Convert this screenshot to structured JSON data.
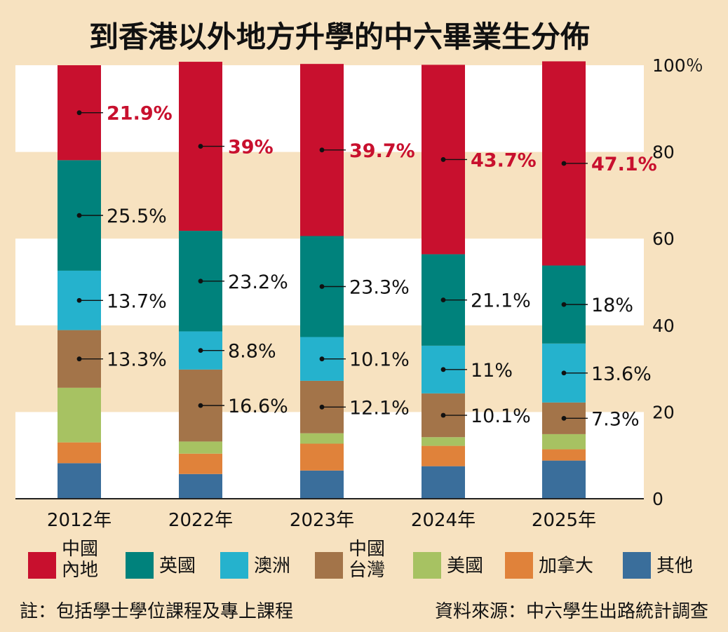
{
  "chart_data": {
    "type": "bar",
    "stacked": true,
    "title": "到香港以外地方升學的中六畢業生分佈",
    "categories": [
      "2012年",
      "2022年",
      "2023年",
      "2024年",
      "2025年"
    ],
    "ylim": [
      0,
      100
    ],
    "y_ticks": [
      "100％",
      "80",
      "60",
      "40",
      "20",
      "0"
    ],
    "grid": "alternating bands",
    "legend_position": "bottom",
    "series": [
      {
        "name": "其他",
        "color": "#3a6e9b",
        "values": [
          8.2,
          5.7,
          6.5,
          7.5,
          8.8
        ]
      },
      {
        "name": "加拿大",
        "color": "#e0823a",
        "values": [
          4.8,
          4.7,
          6.2,
          4.7,
          2.6
        ]
      },
      {
        "name": "美國",
        "color": "#a7c262",
        "values": [
          12.6,
          2.8,
          2.4,
          2.0,
          3.5
        ]
      },
      {
        "name": "中國台灣",
        "color": "#a37449",
        "values": [
          13.3,
          16.6,
          12.1,
          10.1,
          7.3
        ]
      },
      {
        "name": "澳洲",
        "color": "#25b2cd",
        "values": [
          13.7,
          8.8,
          10.1,
          11,
          13.6
        ]
      },
      {
        "name": "英國",
        "color": "#00827c",
        "values": [
          25.5,
          23.2,
          23.3,
          21.1,
          18
        ]
      },
      {
        "name": "中國內地",
        "color": "#c8102e",
        "values": [
          21.9,
          39,
          39.7,
          43.7,
          47.1
        ]
      }
    ],
    "data_labels": [
      {
        "series": "中國內地",
        "texts": [
          "21.9%",
          "39%",
          "39.7%",
          "43.7%",
          "47.1%"
        ]
      },
      {
        "series": "英國",
        "texts": [
          "25.5%",
          "23.2%",
          "23.3%",
          "21.1%",
          "18%"
        ]
      },
      {
        "series": "澳洲",
        "texts": [
          "13.7%",
          "8.8%",
          "10.1%",
          "11%",
          "13.6%"
        ]
      },
      {
        "series": "中國台灣",
        "texts": [
          "13.3%",
          "16.6%",
          "12.1%",
          "10.1%",
          "7.3%"
        ]
      }
    ]
  },
  "legend": [
    {
      "lines": [
        "中國",
        "內地"
      ],
      "color": "#c8102e"
    },
    {
      "lines": [
        "英國"
      ],
      "color": "#00827c"
    },
    {
      "lines": [
        "澳洲"
      ],
      "color": "#25b2cd"
    },
    {
      "lines": [
        "中國",
        "台灣"
      ],
      "color": "#a37449"
    },
    {
      "lines": [
        "美國"
      ],
      "color": "#a7c262"
    },
    {
      "lines": [
        "加拿大"
      ],
      "color": "#e0823a"
    },
    {
      "lines": [
        "其他"
      ],
      "color": "#3a6e9b"
    }
  ],
  "footnote": "註：包括學士學位課程及專上課程",
  "source": "資料來源：中六學生出路統計調查",
  "colors": {
    "background": "#f7e2c0",
    "band": "#ffffff",
    "highlight": "#c8102e"
  }
}
